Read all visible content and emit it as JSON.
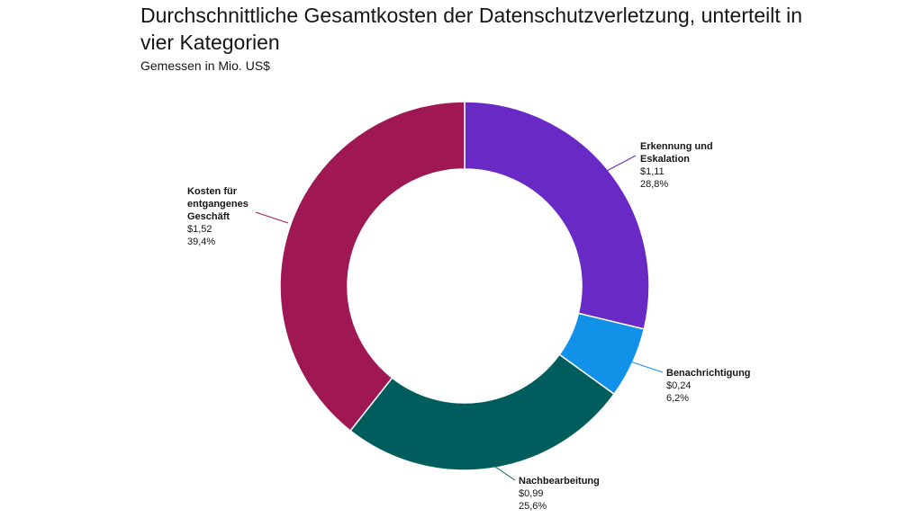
{
  "title": "Durchschnittliche Gesamtkosten der Datenschutzverletzung, unterteilt in vier Kategorien",
  "subtitle": "Gemessen in Mio. US$",
  "chart_data": {
    "type": "pie",
    "variant": "donut",
    "title": "Durchschnittliche Gesamtkosten der Datenschutzverletzung, unterteilt in vier Kategorien",
    "subtitle": "Gemessen in Mio. US$",
    "slices": [
      {
        "label_lines": [
          "Erkennung und",
          "Eskalation"
        ],
        "label": "Erkennung und Eskalation",
        "value": 1.11,
        "value_text": "$1,11",
        "percent_text": "28,8%",
        "color": "#6929c4"
      },
      {
        "label_lines": [
          "Benachrichtigung"
        ],
        "label": "Benachrichtigung",
        "value": 0.24,
        "value_text": "$0,24",
        "percent_text": "6,2%",
        "color": "#1192e8"
      },
      {
        "label_lines": [
          "Nachbearbeitung"
        ],
        "label": "Nachbearbeitung",
        "value": 0.99,
        "value_text": "$0,99",
        "percent_text": "25,6%",
        "color": "#005d5d"
      },
      {
        "label_lines": [
          "Kosten für",
          "entgangenes",
          "Geschäft"
        ],
        "label": "Kosten für entgangenes Geschäft",
        "value": 1.52,
        "value_text": "$1,52",
        "percent_text": "39,4%",
        "color": "#9f1853"
      }
    ]
  }
}
